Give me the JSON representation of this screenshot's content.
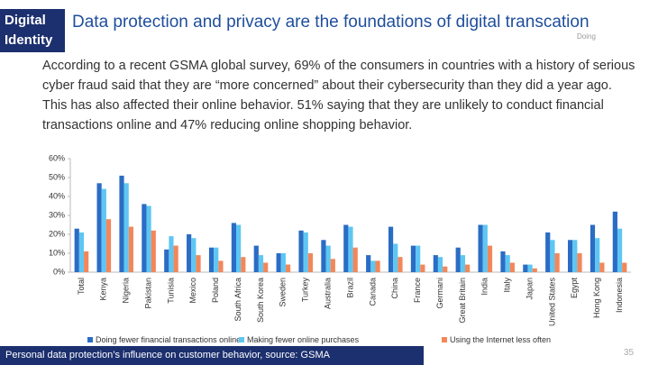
{
  "header": {
    "badge": [
      "Digital",
      "Identity"
    ],
    "title": "Data protection and privacy are the foundations of digital transcation",
    "logo": "Doing"
  },
  "body": {
    "paragraph": "According to a recent GSMA global survey, 69% of the consumers in countries with a history of serious cyber fraud said that they are “more concerned” about their cybersecurity than they did a year ago. This has also affected their online behavior. 51% saying that they are unlikely to conduct financial transactions online and 47% reducing online shopping behavior."
  },
  "chart_data": {
    "type": "bar",
    "categories": [
      "Total",
      "Kenya",
      "Nigeria",
      "Pakistan",
      "Tunisia",
      "Mexico",
      "Poland",
      "South Africa",
      "South Korea",
      "Sweden",
      "Turkey",
      "Australia",
      "Brazil",
      "Canada",
      "China",
      "France",
      "Germani",
      "Great Britain",
      "India",
      "Italy",
      "Japan",
      "United States",
      "Egypt",
      "Hong Kong",
      "Indonesia"
    ],
    "series": [
      {
        "name": "Doing fewer financial transactions online",
        "color": "#2b6cc4",
        "values": [
          23,
          47,
          51,
          36,
          12,
          20,
          13,
          26,
          14,
          10,
          22,
          17,
          25,
          9,
          24,
          14,
          9,
          13,
          25,
          11,
          4,
          21,
          17,
          25,
          32
        ]
      },
      {
        "name": "Making fewer online purchases",
        "color": "#5ec6f2",
        "values": [
          21,
          44,
          47,
          35,
          19,
          18,
          13,
          25,
          9,
          10,
          21,
          14,
          24,
          6,
          15,
          14,
          8,
          9,
          25,
          9,
          4,
          17,
          17,
          18,
          23
        ]
      },
      {
        "name": "Using the Internet less often",
        "color": "#f2875a",
        "values": [
          11,
          28,
          24,
          22,
          14,
          9,
          6,
          8,
          5,
          4,
          10,
          7,
          13,
          6,
          8,
          4,
          3,
          4,
          14,
          5,
          2,
          10,
          10,
          5,
          5
        ]
      }
    ],
    "ylim": [
      0,
      60
    ],
    "yticks": [
      {
        "value": 0,
        "label": "0%"
      },
      {
        "value": 10,
        "label": "10%"
      },
      {
        "value": 20,
        "label": "20%"
      },
      {
        "value": 30,
        "label": "30%"
      },
      {
        "value": 40,
        "label": "40%"
      },
      {
        "value": 50,
        "label": "50%"
      },
      {
        "value": 60,
        "label": "60%"
      }
    ],
    "grid": false,
    "legend": "bottom"
  },
  "footer": {
    "caption": "Personal data protection’s influence on customer behavior, source: GSMA",
    "page_number": "35"
  }
}
